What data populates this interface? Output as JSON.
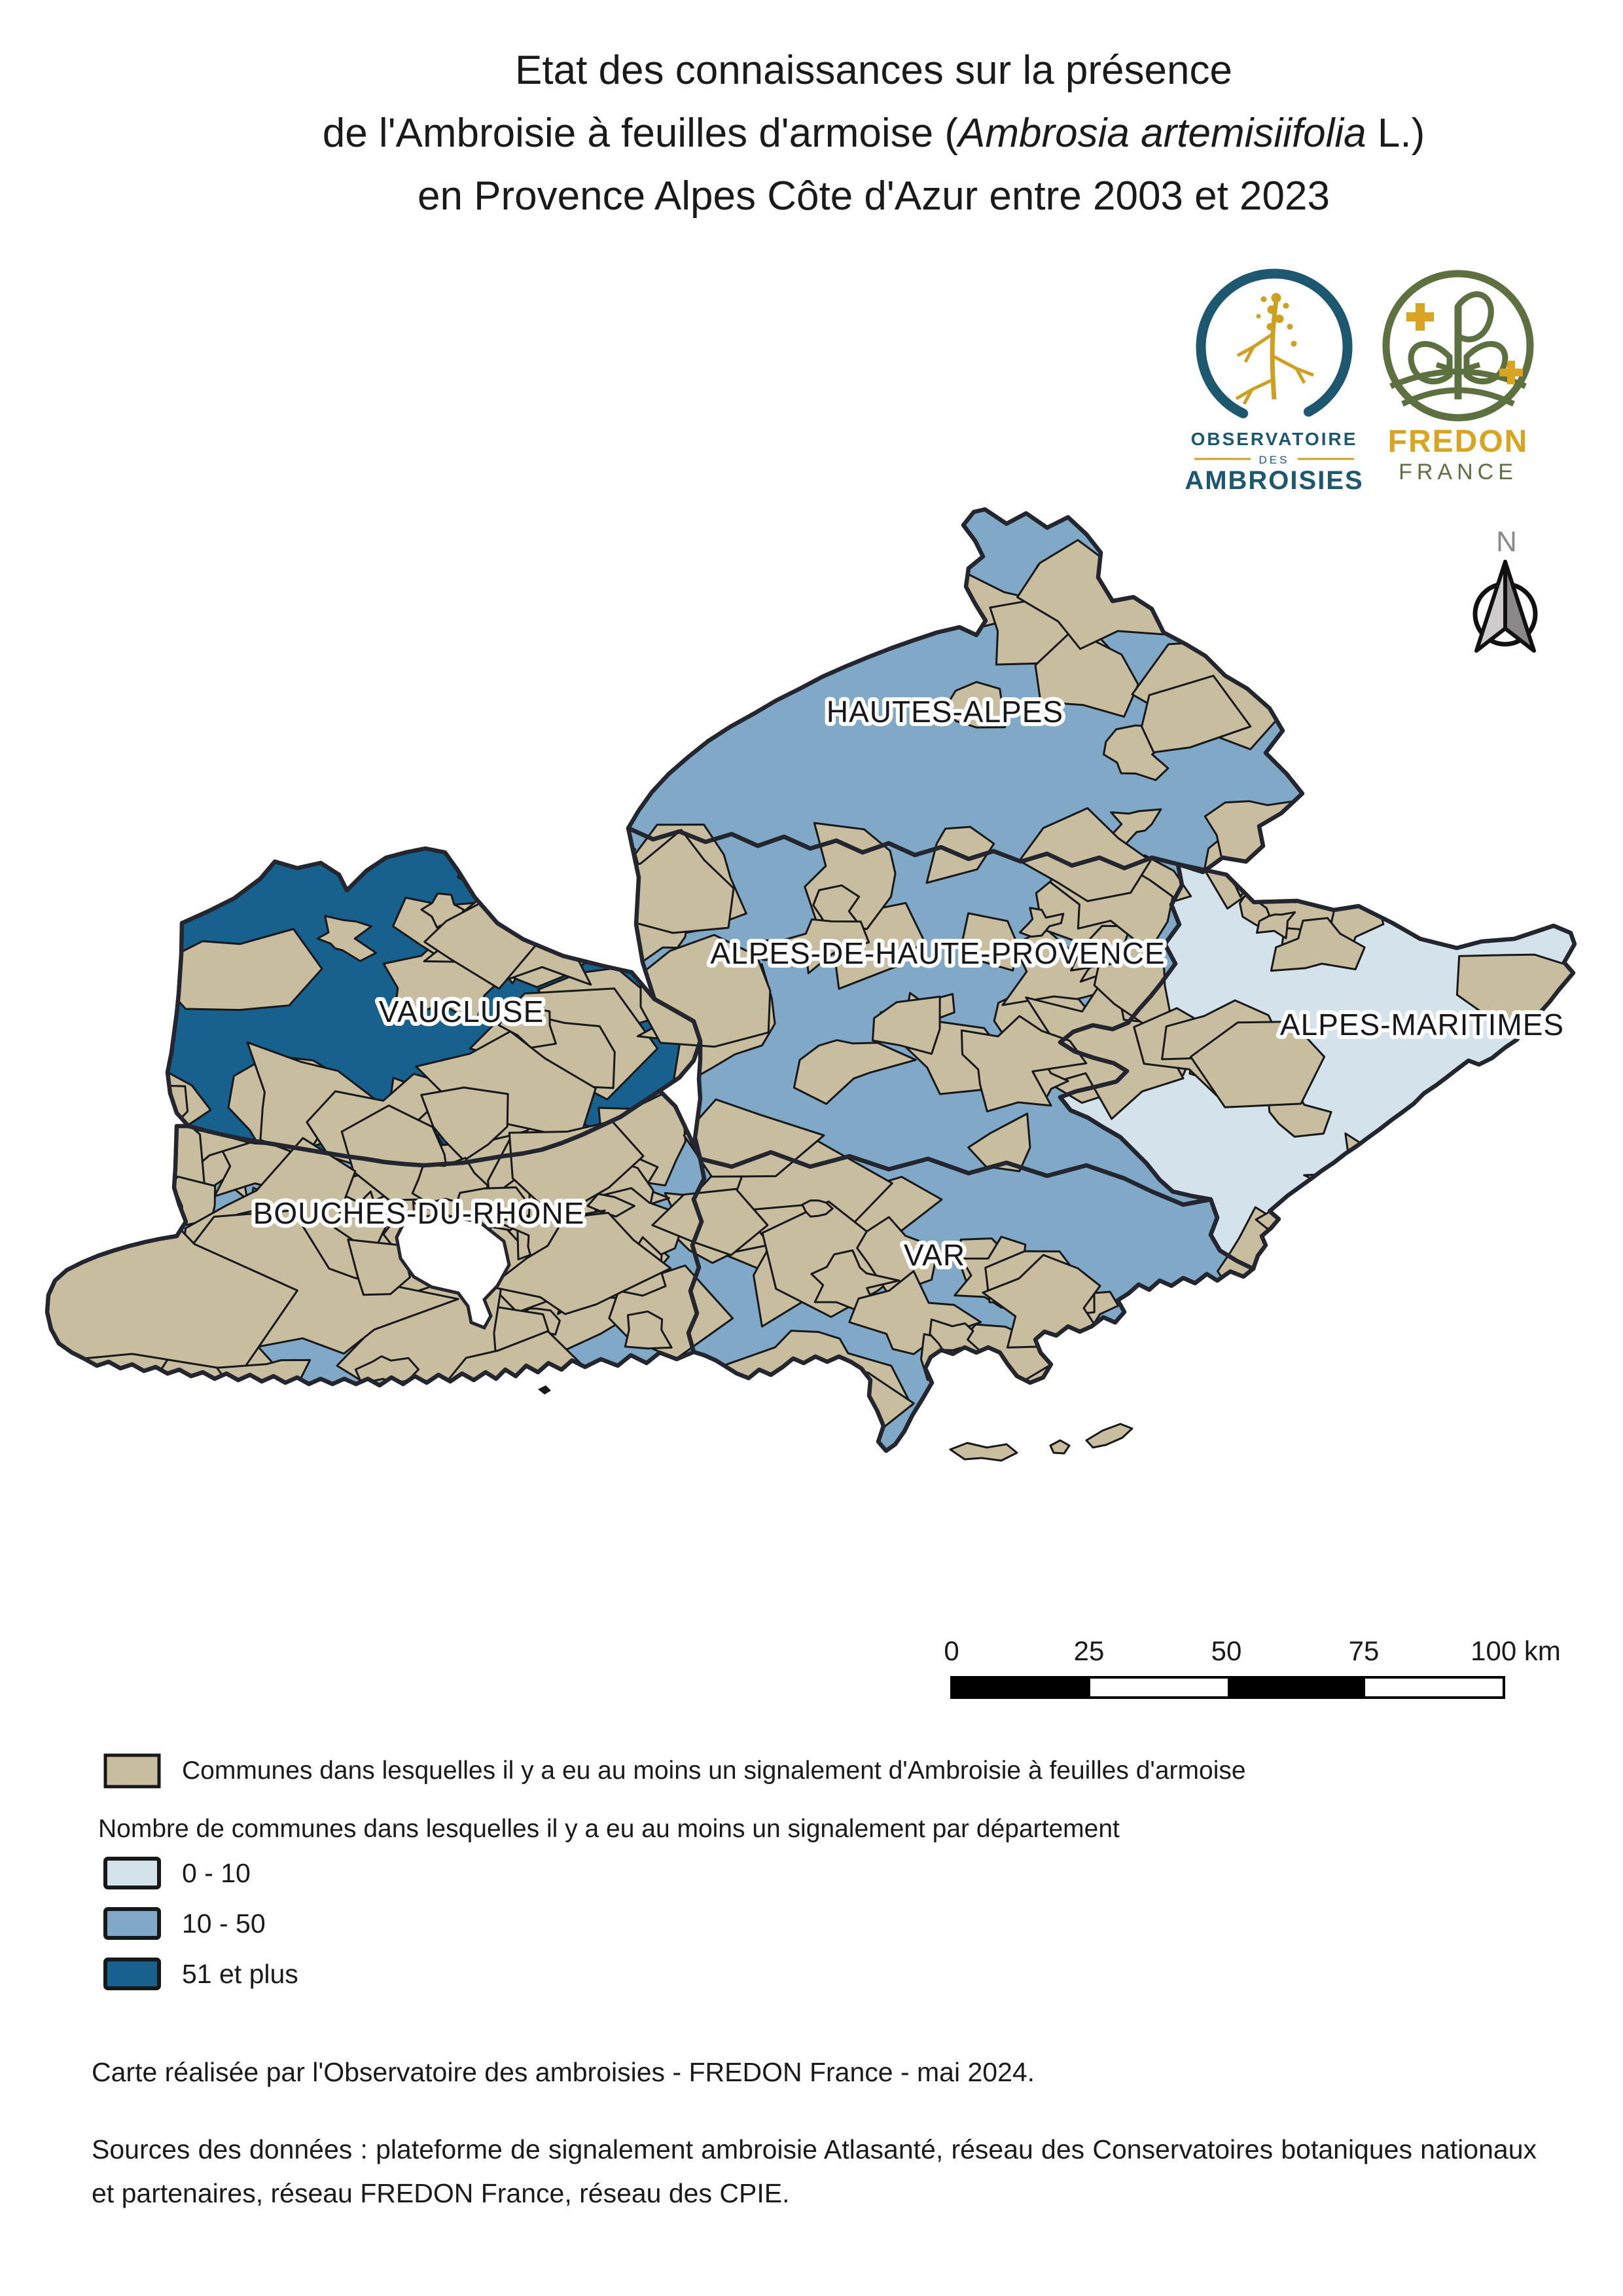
{
  "title": {
    "line1": "Etat des connaissances sur la présence",
    "line2_before": "de l'Ambroisie à feuilles d'armoise (",
    "line2_italic": "Ambrosia artemisiifolia",
    "line2_after": " L.)",
    "line3": "en Provence Alpes Côte d'Azur entre 2003 et 2023"
  },
  "logos": {
    "observatoire": {
      "top": "OBSERVATOIRE",
      "middle": "DES",
      "bottom": "AMBROISIES"
    },
    "fredon": {
      "name": "FREDON",
      "country": "FRANCE"
    }
  },
  "map": {
    "north_label": "N",
    "departments": [
      {
        "name": "HAUTES-ALPES",
        "class": "10 - 50"
      },
      {
        "name": "ALPES-DE-HAUTE-PROVENCE",
        "class": "10 - 50"
      },
      {
        "name": "ALPES-MARITIMES",
        "class": "0 - 10"
      },
      {
        "name": "VAUCLUSE",
        "class": "51 et plus"
      },
      {
        "name": "BOUCHES-DU-RHONE",
        "class": "10 - 50"
      },
      {
        "name": "VAR",
        "class": "10 - 50"
      }
    ]
  },
  "scalebar": {
    "ticks": [
      "0",
      "25",
      "50",
      "75"
    ],
    "end": "100 km"
  },
  "legend": {
    "communes": {
      "label": "Communes dans lesquelles il y a eu au moins un signalement d'Ambroisie à feuilles d'armoise",
      "color": "#c8bd9e"
    },
    "heading": "Nombre de communes dans lesquelles il y a eu au moins un signalement par département",
    "classes": [
      {
        "label": "0 - 10",
        "color": "#d4e2ec"
      },
      {
        "label": "10 - 50",
        "color": "#7fa9c6"
      },
      {
        "label": "51 et plus",
        "color": "#16618e"
      }
    ]
  },
  "credits": {
    "made_by": "Carte réalisée par l'Observatoire des ambroisies - FREDON France - mai 2024.",
    "sources": "Sources des données : plateforme de signalement ambroisie Atlasanté, réseau des Conservatoires botaniques nationaux et partenaires, réseau FREDON France, réseau des CPIE."
  },
  "colors": {
    "commune_tan": "#c8bd9e",
    "class_low": "#d4e2ec",
    "class_mid": "#7fa9c6",
    "class_high": "#16618e",
    "border_dark": "#23262e"
  }
}
